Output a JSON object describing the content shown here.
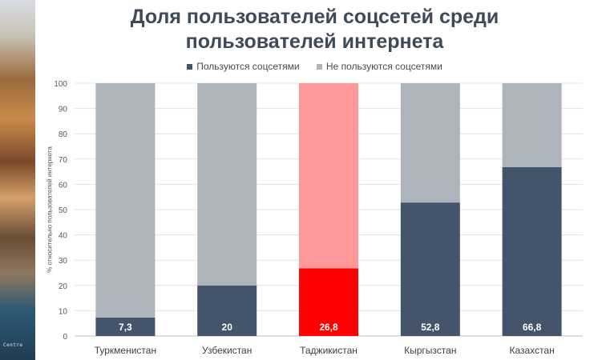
{
  "title_line1": "Доля пользователей соцсетей среди",
  "title_line2": "пользователей интернета",
  "side_image_caption": "Centre",
  "chart_data": {
    "type": "bar",
    "stacked": true,
    "title": "Доля пользователей соцсетей среди пользователей интернета",
    "ylabel": "% относительно пользователей интернета",
    "xlabel": "",
    "ylim": [
      0,
      100
    ],
    "yticks": [
      0,
      10,
      20,
      30,
      40,
      50,
      60,
      70,
      80,
      90,
      100
    ],
    "grid": true,
    "legend_position": "top",
    "categories": [
      "Туркменистан",
      "Узбекистан",
      "Таджикистан",
      "Кыргызстан",
      "Казахстан"
    ],
    "series": [
      {
        "name": "Пользуются соцсетями",
        "values": [
          7.3,
          20,
          26.8,
          52.8,
          66.8
        ],
        "color": "#44546a"
      },
      {
        "name": "Не пользуются соцсетями",
        "values": [
          92.7,
          80,
          73.2,
          47.2,
          33.2
        ],
        "color": "#aeb4bb"
      }
    ],
    "data_labels": [
      "7,3",
      "20",
      "26,8",
      "52,8",
      "66,8"
    ],
    "highlight": {
      "category": "Таджикистан",
      "color_used": "#ff0000",
      "color_not_used": "#ff9999"
    }
  }
}
